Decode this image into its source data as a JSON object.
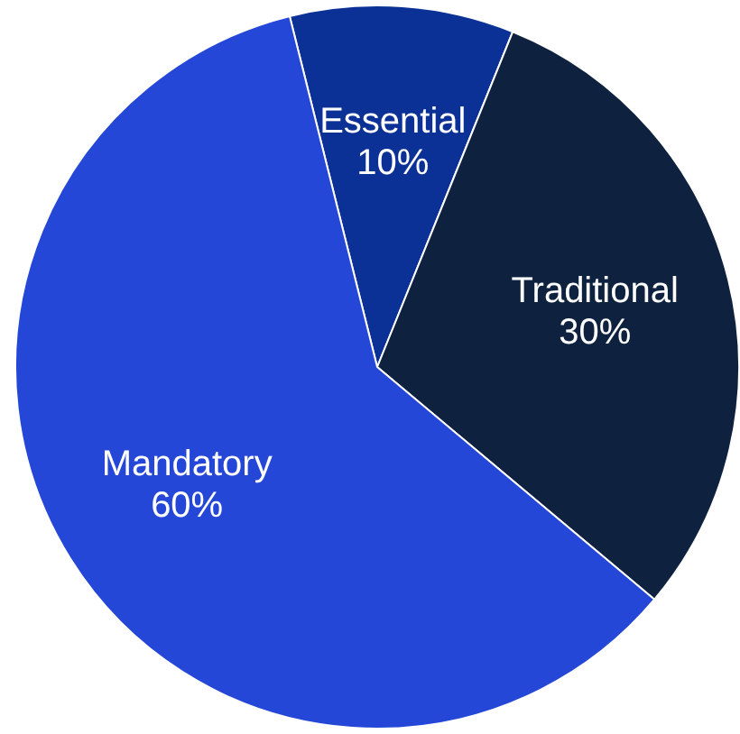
{
  "chart_data": {
    "type": "pie",
    "categories": [
      "Essential",
      "Traditional",
      "Mandatory"
    ],
    "values": [
      10,
      30,
      60
    ],
    "value_labels": [
      "10%",
      "30%",
      "60%"
    ],
    "colors": [
      "#0b3196",
      "#0e2240",
      "#2547d8"
    ],
    "legend": false
  }
}
